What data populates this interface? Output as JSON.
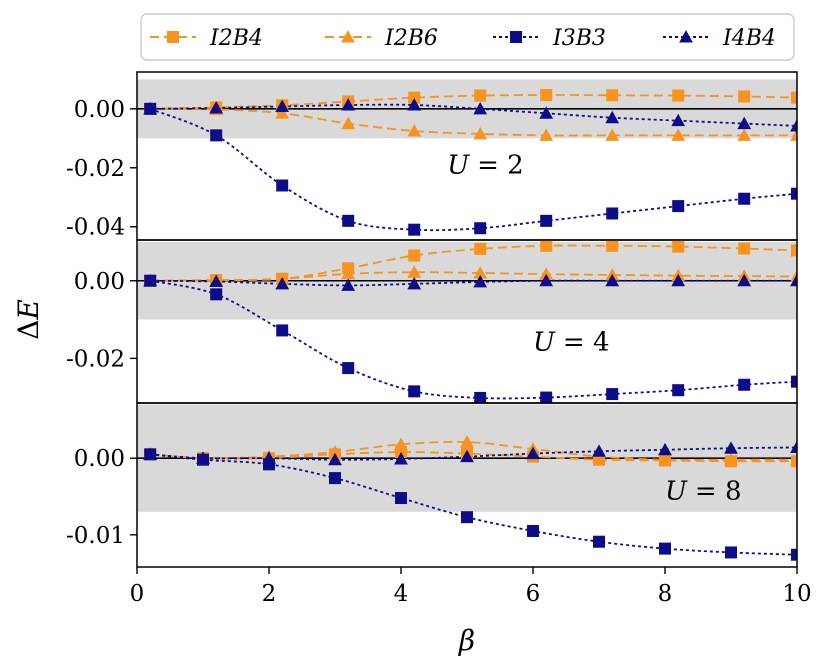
{
  "chart_data": {
    "type": "line",
    "xlabel_symbol": "β",
    "ylabel_prefix": "Δ",
    "ylabel_symbol": "E",
    "xlim": [
      0,
      10
    ],
    "xticks": [
      0,
      2,
      4,
      6,
      8,
      10
    ],
    "xtick_labels": [
      "0",
      "2",
      "4",
      "6",
      "8",
      "10"
    ],
    "colors": {
      "orange": "#f7931e",
      "navy": "#0d0d8a",
      "band": "#d9d9d9",
      "zero_line": "#000000"
    },
    "legend": [
      {
        "name": "I2B4",
        "color": "#f7931e",
        "marker": "square",
        "dash": "dashed"
      },
      {
        "name": "I2B6",
        "color": "#f7931e",
        "marker": "triangle",
        "dash": "dashed"
      },
      {
        "name": "I3B3",
        "color": "#0d0d8a",
        "marker": "square",
        "dash": "dotted"
      },
      {
        "name": "I4B4",
        "color": "#0d0d8a",
        "marker": "triangle",
        "dash": "dotted"
      }
    ],
    "panels": [
      {
        "annotation_var": "U",
        "annotation_eq": "= 2",
        "annotation_pos": [
          4.7,
          -0.022
        ],
        "ylim": [
          -0.0445,
          0.0125
        ],
        "yticks": [
          0.0,
          -0.02,
          -0.04
        ],
        "ytick_labels": [
          "0.00",
          "-0.02",
          "-0.04"
        ],
        "band": [
          -0.01,
          0.01
        ],
        "series": [
          {
            "name": "I2B4",
            "x": [
              0.2,
              1.2,
              2.2,
              3.2,
              4.2,
              5.2,
              6.2,
              7.2,
              8.2,
              9.2,
              10
            ],
            "y": [
              0.0,
              0.0005,
              0.0012,
              0.0025,
              0.0038,
              0.0045,
              0.0047,
              0.0046,
              0.0045,
              0.0042,
              0.0038
            ]
          },
          {
            "name": "I2B6",
            "x": [
              0.2,
              1.2,
              2.2,
              3.2,
              4.2,
              5.2,
              6.2,
              7.2,
              8.2,
              9.2,
              10
            ],
            "y": [
              0.0,
              -0.0002,
              -0.0015,
              -0.005,
              -0.0075,
              -0.0085,
              -0.009,
              -0.009,
              -0.009,
              -0.009,
              -0.009
            ]
          },
          {
            "name": "I3B3",
            "x": [
              0.2,
              1.2,
              2.2,
              3.2,
              4.2,
              5.2,
              6.2,
              7.2,
              8.2,
              9.2,
              10
            ],
            "y": [
              0.0,
              -0.009,
              -0.026,
              -0.038,
              -0.041,
              -0.0405,
              -0.038,
              -0.0355,
              -0.033,
              -0.0305,
              -0.0288
            ]
          },
          {
            "name": "I4B4",
            "x": [
              0.2,
              1.2,
              2.2,
              3.2,
              4.2,
              5.2,
              6.2,
              7.2,
              8.2,
              9.2,
              10
            ],
            "y": [
              0.0,
              0.0003,
              0.0008,
              0.0013,
              0.0013,
              0.0,
              -0.0015,
              -0.003,
              -0.004,
              -0.005,
              -0.0058
            ]
          }
        ]
      },
      {
        "annotation_var": "U",
        "annotation_eq": "= 4",
        "annotation_pos": [
          6.0,
          -0.018
        ],
        "ylim": [
          -0.0315,
          0.0105
        ],
        "yticks": [
          0.0,
          -0.02
        ],
        "ytick_labels": [
          "0.00",
          "-0.02"
        ],
        "band": [
          -0.01,
          0.01
        ],
        "series": [
          {
            "name": "I2B4",
            "x": [
              0.2,
              1.2,
              2.2,
              3.2,
              4.2,
              5.2,
              6.2,
              7.2,
              8.2,
              9.2,
              10
            ],
            "y": [
              0.0,
              0.0002,
              0.0005,
              0.0032,
              0.0065,
              0.0082,
              0.009,
              0.009,
              0.0088,
              0.0083,
              0.0078
            ]
          },
          {
            "name": "I2B6",
            "x": [
              0.2,
              1.2,
              2.2,
              3.2,
              4.2,
              5.2,
              6.2,
              7.2,
              8.2,
              9.2,
              10
            ],
            "y": [
              0.0,
              0.0001,
              0.0005,
              0.0018,
              0.0022,
              0.002,
              0.0017,
              0.0015,
              0.0013,
              0.0012,
              0.0011
            ]
          },
          {
            "name": "I3B3",
            "x": [
              0.2,
              1.2,
              2.2,
              3.2,
              4.2,
              5.2,
              6.2,
              7.2,
              8.2,
              9.2,
              10
            ],
            "y": [
              0.0,
              -0.0035,
              -0.0128,
              -0.0225,
              -0.0285,
              -0.0302,
              -0.0301,
              -0.0292,
              -0.0282,
              -0.0268,
              -0.026
            ]
          },
          {
            "name": "I4B4",
            "x": [
              0.2,
              1.2,
              2.2,
              3.2,
              4.2,
              5.2,
              6.2,
              7.2,
              8.2,
              9.2,
              10
            ],
            "y": [
              0.0,
              -0.0002,
              -0.0008,
              -0.0012,
              -0.0008,
              -0.0003,
              0.0,
              0.0,
              0.0,
              0.0,
              0.0
            ]
          }
        ]
      },
      {
        "annotation_var": "U",
        "annotation_eq": "= 8",
        "annotation_pos": [
          8.0,
          -0.0054
        ],
        "ylim": [
          -0.0142,
          0.0072
        ],
        "yticks": [
          0.0,
          -0.01
        ],
        "ytick_labels": [
          "0.00",
          "-0.01"
        ],
        "band": [
          -0.007,
          0.007
        ],
        "series": [
          {
            "name": "I2B4",
            "x": [
              0.2,
              1.0,
              2.0,
              3.0,
              4.0,
              5.0,
              6.0,
              7.0,
              8.0,
              9.0,
              10
            ],
            "y": [
              0.0005,
              0.0,
              0.0,
              0.0005,
              0.0008,
              0.0006,
              0.0002,
              -0.0002,
              -0.0003,
              -0.0004,
              -0.0004
            ]
          },
          {
            "name": "I2B6",
            "x": [
              0.2,
              1.0,
              2.0,
              3.0,
              4.0,
              5.0,
              6.0,
              7.0,
              8.0,
              9.0,
              10
            ],
            "y": [
              0.0005,
              0.0,
              0.0002,
              0.0008,
              0.0018,
              0.0021,
              0.0012,
              0.0002,
              -0.0002,
              -0.0002,
              -0.0002
            ]
          },
          {
            "name": "I3B3",
            "x": [
              0.2,
              1.0,
              2.0,
              3.0,
              4.0,
              5.0,
              6.0,
              7.0,
              8.0,
              9.0,
              10
            ],
            "y": [
              0.0005,
              -0.0002,
              -0.0008,
              -0.0026,
              -0.0052,
              -0.0077,
              -0.0095,
              -0.0109,
              -0.0118,
              -0.0123,
              -0.0126
            ]
          },
          {
            "name": "I4B4",
            "x": [
              0.2,
              1.0,
              2.0,
              3.0,
              4.0,
              5.0,
              6.0,
              7.0,
              8.0,
              9.0,
              10
            ],
            "y": [
              0.0005,
              0.0,
              0.0,
              -0.0002,
              -0.0001,
              0.0002,
              0.0006,
              0.0009,
              0.0011,
              0.0013,
              0.0014
            ]
          }
        ]
      }
    ]
  }
}
